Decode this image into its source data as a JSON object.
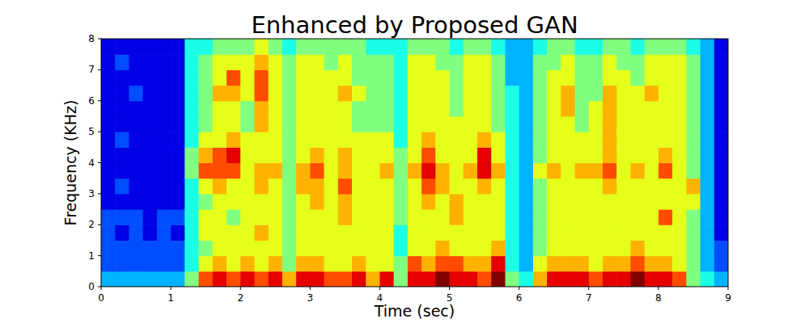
{
  "chart_data": {
    "type": "heatmap",
    "title": "Enhanced by Proposed GAN",
    "x_label": "Time (sec)",
    "y_label": "Frequency (KHz)",
    "xlim": [
      0,
      9
    ],
    "xticks": [
      0,
      1,
      2,
      3,
      4,
      5,
      6,
      7,
      8,
      9
    ],
    "ylim": [
      0,
      8
    ],
    "yticks": [
      0,
      1,
      2,
      3,
      4,
      5,
      6,
      7,
      8
    ],
    "zlim": [
      0,
      10
    ],
    "x_bins": [
      0,
      0.2,
      0.4,
      0.6,
      0.8,
      1,
      1.2,
      1.4,
      1.6,
      1.8,
      2,
      2.2,
      2.4,
      2.6,
      2.8,
      3,
      3.2,
      3.4,
      3.6,
      3.8,
      4,
      4.2,
      4.4,
      4.6,
      4.8,
      5,
      5.2,
      5.4,
      5.6,
      5.8,
      6,
      6.2,
      6.4,
      6.6,
      6.8,
      7,
      7.2,
      7.4,
      7.6,
      7.8,
      8,
      8.2,
      8.4,
      8.6,
      8.8,
      9
    ],
    "y_bins": [
      0,
      0.5,
      1,
      1.5,
      2,
      2.5,
      3,
      3.5,
      4,
      4.5,
      5,
      5.5,
      6,
      6.5,
      7,
      7.5,
      8
    ],
    "cells": [
      [
        3,
        2,
        2,
        2,
        2,
        1,
        1,
        1,
        1,
        1,
        1,
        1,
        1,
        1,
        1,
        1
      ],
      [
        3,
        2,
        2,
        1,
        2,
        1,
        2,
        1,
        1,
        2,
        1,
        1,
        1,
        1,
        2,
        1
      ],
      [
        3,
        2,
        2,
        2,
        2,
        1,
        1,
        1,
        1,
        1,
        1,
        1,
        2,
        1,
        1,
        1
      ],
      [
        3,
        2,
        2,
        1,
        1,
        1,
        1,
        1,
        1,
        1,
        1,
        1,
        1,
        1,
        1,
        1
      ],
      [
        3,
        2,
        2,
        2,
        2,
        1,
        1,
        1,
        1,
        1,
        1,
        1,
        1,
        1,
        1,
        1
      ],
      [
        3,
        2,
        2,
        1,
        2,
        1,
        1,
        1,
        1,
        1,
        1,
        1,
        1,
        1,
        1,
        1
      ],
      [
        5,
        4,
        4,
        4,
        4,
        4,
        4,
        5,
        5,
        4,
        4,
        4,
        4,
        4,
        4,
        4
      ],
      [
        8,
        6,
        5,
        6,
        6,
        5,
        6,
        8,
        7,
        6,
        5,
        5,
        5,
        5,
        5,
        4
      ],
      [
        9,
        7,
        6,
        6,
        6,
        6,
        7,
        8,
        8,
        6,
        6,
        6,
        7,
        6,
        6,
        5
      ],
      [
        8,
        6,
        6,
        6,
        5,
        6,
        6,
        8,
        9,
        7,
        6,
        6,
        7,
        8,
        6,
        5
      ],
      [
        9,
        7,
        6,
        6,
        6,
        6,
        6,
        6,
        6,
        6,
        5,
        5,
        6,
        6,
        6,
        5
      ],
      [
        8,
        6,
        6,
        7,
        6,
        6,
        7,
        7,
        6,
        6,
        7,
        7,
        8,
        8,
        7,
        6
      ],
      [
        9,
        7,
        6,
        6,
        6,
        6,
        6,
        7,
        6,
        6,
        6,
        6,
        6,
        6,
        6,
        5
      ],
      [
        7,
        5,
        5,
        5,
        5,
        5,
        5,
        5,
        5,
        5,
        5,
        5,
        5,
        5,
        5,
        4
      ],
      [
        9,
        7,
        6,
        6,
        6,
        6,
        7,
        7,
        6,
        6,
        6,
        6,
        6,
        6,
        6,
        5
      ],
      [
        9,
        7,
        6,
        6,
        6,
        7,
        7,
        8,
        7,
        6,
        6,
        6,
        6,
        6,
        6,
        5
      ],
      [
        8,
        6,
        6,
        6,
        6,
        6,
        6,
        6,
        6,
        6,
        6,
        6,
        6,
        6,
        5,
        5
      ],
      [
        8,
        6,
        6,
        6,
        7,
        7,
        8,
        7,
        7,
        6,
        6,
        6,
        7,
        6,
        6,
        5
      ],
      [
        9,
        7,
        6,
        6,
        6,
        6,
        6,
        6,
        6,
        6,
        5,
        5,
        6,
        5,
        5,
        5
      ],
      [
        7,
        6,
        6,
        6,
        6,
        6,
        6,
        6,
        6,
        6,
        5,
        5,
        5,
        5,
        5,
        4
      ],
      [
        9,
        6,
        6,
        6,
        6,
        6,
        6,
        7,
        6,
        6,
        5,
        5,
        5,
        5,
        5,
        4
      ],
      [
        5,
        5,
        4,
        4,
        5,
        5,
        5,
        5,
        5,
        4,
        4,
        4,
        4,
        4,
        4,
        4
      ],
      [
        9,
        8,
        6,
        6,
        6,
        6,
        6,
        7,
        6,
        6,
        6,
        6,
        6,
        6,
        6,
        5
      ],
      [
        9,
        7,
        6,
        6,
        6,
        7,
        8,
        9,
        8,
        7,
        6,
        6,
        6,
        6,
        6,
        5
      ],
      [
        10,
        8,
        7,
        6,
        6,
        6,
        7,
        7,
        6,
        6,
        6,
        6,
        6,
        6,
        5,
        5
      ],
      [
        9,
        8,
        6,
        6,
        7,
        7,
        6,
        6,
        6,
        6,
        6,
        5,
        5,
        5,
        5,
        4
      ],
      [
        9,
        7,
        6,
        6,
        6,
        6,
        6,
        7,
        6,
        6,
        6,
        6,
        6,
        6,
        6,
        5
      ],
      [
        8,
        7,
        6,
        6,
        6,
        6,
        7,
        9,
        9,
        7,
        6,
        6,
        6,
        6,
        6,
        5
      ],
      [
        10,
        9,
        7,
        6,
        6,
        6,
        6,
        7,
        6,
        6,
        5,
        5,
        5,
        5,
        5,
        4
      ],
      [
        5,
        4,
        4,
        4,
        4,
        4,
        4,
        4,
        4,
        4,
        4,
        4,
        4,
        3,
        3,
        3
      ],
      [
        4,
        3,
        3,
        3,
        3,
        3,
        3,
        3,
        3,
        3,
        3,
        3,
        3,
        3,
        3,
        3
      ],
      [
        7,
        6,
        5,
        5,
        5,
        5,
        5,
        6,
        5,
        5,
        5,
        5,
        5,
        5,
        5,
        4
      ],
      [
        9,
        7,
        6,
        6,
        6,
        6,
        6,
        7,
        6,
        6,
        6,
        6,
        6,
        6,
        5,
        5
      ],
      [
        9,
        7,
        6,
        6,
        6,
        6,
        6,
        6,
        6,
        6,
        6,
        7,
        7,
        6,
        6,
        5
      ],
      [
        9,
        7,
        6,
        6,
        6,
        6,
        6,
        7,
        6,
        6,
        5,
        5,
        5,
        5,
        5,
        4
      ],
      [
        8,
        6,
        6,
        6,
        6,
        6,
        6,
        7,
        6,
        6,
        6,
        6,
        5,
        5,
        5,
        4
      ],
      [
        9,
        7,
        6,
        6,
        6,
        6,
        7,
        8,
        7,
        7,
        7,
        7,
        7,
        6,
        6,
        5
      ],
      [
        9,
        7,
        6,
        6,
        6,
        6,
        6,
        6,
        6,
        6,
        6,
        6,
        6,
        6,
        5,
        5
      ],
      [
        10,
        8,
        7,
        6,
        6,
        6,
        6,
        7,
        6,
        6,
        6,
        6,
        6,
        5,
        5,
        4
      ],
      [
        9,
        7,
        6,
        6,
        6,
        6,
        6,
        6,
        6,
        6,
        6,
        6,
        7,
        6,
        6,
        5
      ],
      [
        9,
        7,
        6,
        6,
        8,
        6,
        6,
        8,
        7,
        6,
        6,
        6,
        6,
        6,
        6,
        5
      ],
      [
        8,
        6,
        6,
        6,
        6,
        6,
        6,
        6,
        6,
        6,
        6,
        6,
        6,
        6,
        6,
        5
      ],
      [
        5,
        5,
        5,
        5,
        5,
        6,
        7,
        5,
        5,
        5,
        5,
        5,
        5,
        5,
        5,
        4
      ],
      [
        4,
        3,
        3,
        3,
        3,
        3,
        3,
        3,
        3,
        3,
        3,
        3,
        3,
        3,
        3,
        3
      ],
      [
        3,
        2,
        2,
        1,
        1,
        1,
        1,
        1,
        1,
        1,
        1,
        1,
        1,
        1,
        1,
        1
      ]
    ]
  }
}
